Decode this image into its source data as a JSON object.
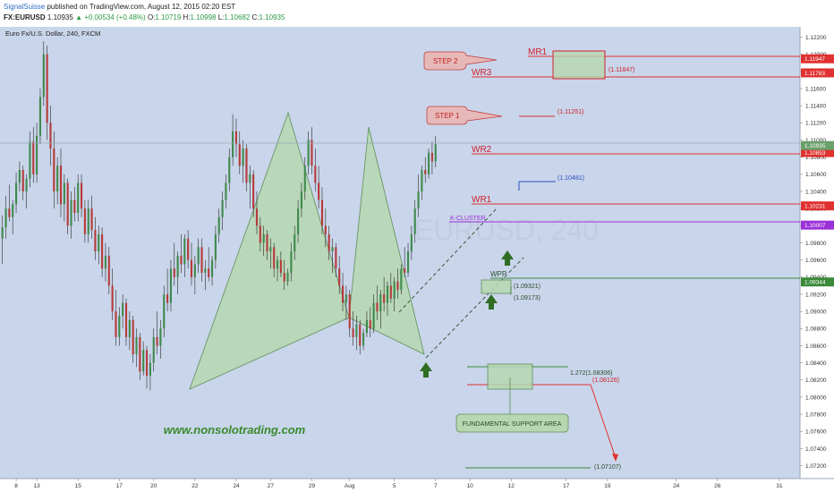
{
  "header": {
    "publisher": "SignalSuisse",
    "published_text": "published on TradingView.com, August 12, 2015 02:20 EST",
    "symbol": "FX:EURUSD",
    "last": "1.10935",
    "change": "▲ +0.00534 (+0.48%)",
    "ohlc_o_label": "O:",
    "ohlc_o": "1.10719",
    "ohlc_h_label": "H:",
    "ohlc_h": "1.10998",
    "ohlc_l_label": "L:",
    "ohlc_l": "1.10682",
    "ohlc_c_label": "C:",
    "ohlc_c": "1.10935"
  },
  "colors": {
    "background": "#c9d5ea",
    "bull": "#3e8a4c",
    "bear": "#b53a3a",
    "pattern_fill": "#b6d7b0",
    "level_red": "#e03131",
    "level_green": "#3a8a3a",
    "k_cluster": "#9b30d9",
    "wr_blue": "#2b4fc4",
    "price_current": "#6aa06a"
  },
  "chart_data": {
    "type": "candlestick",
    "title": "Euro Fx/U.S. Dollar, 240, FXCM",
    "watermark": "EURUSD, 240",
    "ylim": [
      1.0705,
      1.1232
    ],
    "y_ticks": [
      1.122,
      1.12,
      1.118,
      1.116,
      1.114,
      1.112,
      1.11,
      1.108,
      1.106,
      1.104,
      1.102,
      1.1,
      1.098,
      1.096,
      1.094,
      1.092,
      1.09,
      1.088,
      1.086,
      1.084,
      1.082,
      1.08,
      1.078,
      1.076,
      1.074,
      1.072
    ],
    "y_tick_labels": [
      "1.12200",
      "1.12000",
      "1.11800",
      "1.11600",
      "1.11400",
      "1.11200",
      "1.11000",
      "1.10800",
      "1.10600",
      "1.10400",
      "1.10200",
      "1.10000",
      "1.09800",
      "1.09600",
      "1.09400",
      "1.09200",
      "1.09000",
      "1.08800",
      "1.08600",
      "1.08400",
      "1.08200",
      "1.08000",
      "1.07800",
      "1.07600",
      "1.07400",
      "1.07200"
    ],
    "x_ticks": [
      {
        "label": "8",
        "i": 4
      },
      {
        "label": "13",
        "i": 10
      },
      {
        "label": "15",
        "i": 22
      },
      {
        "label": "17",
        "i": 34
      },
      {
        "label": "20",
        "i": 44
      },
      {
        "label": "22",
        "i": 56
      },
      {
        "label": "24",
        "i": 68
      },
      {
        "label": "27",
        "i": 78
      },
      {
        "label": "29",
        "i": 90
      },
      {
        "label": "Aug",
        "i": 101
      },
      {
        "label": "5",
        "i": 114
      },
      {
        "label": "7",
        "i": 126
      },
      {
        "label": "10",
        "i": 136
      },
      {
        "label": "12",
        "i": 148
      },
      {
        "label": "17",
        "i": 164
      },
      {
        "label": "19",
        "i": 176
      },
      {
        "label": "24",
        "i": 196
      },
      {
        "label": "26",
        "i": 208
      },
      {
        "label": "31",
        "i": 226
      }
    ],
    "x_index_range": [
      -0.7,
      232
    ],
    "ohlc": [
      [
        1.0985,
        1.1012,
        1.0955,
        1.0998
      ],
      [
        1.0998,
        1.1035,
        1.0985,
        1.102
      ],
      [
        1.102,
        1.1048,
        1.1005,
        1.101
      ],
      [
        1.101,
        1.103,
        1.099,
        1.1025
      ],
      [
        1.1025,
        1.1062,
        1.1015,
        1.105
      ],
      [
        1.105,
        1.1075,
        1.104,
        1.1065
      ],
      [
        1.1065,
        1.107,
        1.103,
        1.104
      ],
      [
        1.104,
        1.106,
        1.102,
        1.1055
      ],
      [
        1.1055,
        1.111,
        1.1045,
        1.1098
      ],
      [
        1.1098,
        1.1115,
        1.105,
        1.106
      ],
      [
        1.106,
        1.112,
        1.105,
        1.1105
      ],
      [
        1.1105,
        1.116,
        1.1095,
        1.115
      ],
      [
        1.115,
        1.1215,
        1.114,
        1.12
      ],
      [
        1.12,
        1.121,
        1.11,
        1.112
      ],
      [
        1.112,
        1.114,
        1.107,
        1.109
      ],
      [
        1.109,
        1.111,
        1.102,
        1.104
      ],
      [
        1.104,
        1.108,
        1.1025,
        1.107
      ],
      [
        1.107,
        1.109,
        1.101,
        1.1025
      ],
      [
        1.1025,
        1.106,
        1.1005,
        1.105
      ],
      [
        1.105,
        1.1055,
        1.099,
        1.1
      ],
      [
        1.1,
        1.104,
        1.0985,
        1.103
      ],
      [
        1.103,
        1.1045,
        1.1005,
        1.1015
      ],
      [
        1.1015,
        1.106,
        1.1005,
        1.105
      ],
      [
        1.105,
        1.106,
        1.101,
        1.102
      ],
      [
        1.102,
        1.103,
        1.098,
        1.099
      ],
      [
        1.099,
        1.103,
        1.098,
        1.102
      ],
      [
        1.102,
        1.1035,
        1.0985,
        1.0995
      ],
      [
        1.0995,
        1.101,
        1.096,
        1.097
      ],
      [
        1.097,
        1.1,
        1.0955,
        1.099
      ],
      [
        1.099,
        1.0998,
        1.094,
        1.095
      ],
      [
        1.095,
        1.098,
        1.0935,
        1.0965
      ],
      [
        1.0965,
        1.0975,
        1.092,
        1.093
      ],
      [
        1.093,
        1.095,
        1.089,
        1.09
      ],
      [
        1.09,
        1.0925,
        1.086,
        1.087
      ],
      [
        1.087,
        1.0905,
        1.086,
        1.0895
      ],
      [
        1.0895,
        1.092,
        1.088,
        1.091
      ],
      [
        1.091,
        1.0915,
        1.086,
        1.087
      ],
      [
        1.087,
        1.09,
        1.0855,
        1.089
      ],
      [
        1.089,
        1.0895,
        1.084,
        1.085
      ],
      [
        1.085,
        1.088,
        1.0835,
        1.087
      ],
      [
        1.087,
        1.0875,
        1.082,
        1.083
      ],
      [
        1.083,
        1.0865,
        1.0825,
        1.0855
      ],
      [
        1.0855,
        1.086,
        1.081,
        1.0825
      ],
      [
        1.0825,
        1.085,
        1.0808,
        1.084
      ],
      [
        1.084,
        1.088,
        1.083,
        1.087
      ],
      [
        1.087,
        1.09,
        1.085,
        1.086
      ],
      [
        1.086,
        1.089,
        1.0845,
        1.088
      ],
      [
        1.088,
        1.093,
        1.087,
        1.092
      ],
      [
        1.092,
        1.095,
        1.09,
        1.091
      ],
      [
        1.091,
        1.096,
        1.09,
        1.095
      ],
      [
        1.095,
        1.098,
        1.093,
        1.094
      ],
      [
        1.094,
        1.097,
        1.092,
        1.0965
      ],
      [
        1.0965,
        1.099,
        1.0945,
        1.0955
      ],
      [
        1.0955,
        1.099,
        1.094,
        1.0985
      ],
      [
        1.0985,
        1.0995,
        1.095,
        1.096
      ],
      [
        1.096,
        1.098,
        1.093,
        1.094
      ],
      [
        1.094,
        1.0965,
        1.092,
        1.0955
      ],
      [
        1.0955,
        1.0985,
        1.0945,
        1.0975
      ],
      [
        1.0975,
        1.0985,
        1.0935,
        1.0945
      ],
      [
        1.0945,
        1.096,
        1.0925,
        1.095
      ],
      [
        1.095,
        1.0975,
        1.0935,
        1.094
      ],
      [
        1.094,
        1.0965,
        1.093,
        1.096
      ],
      [
        1.096,
        1.1,
        1.095,
        1.099
      ],
      [
        1.099,
        1.102,
        1.098,
        1.101
      ],
      [
        1.101,
        1.104,
        1.0995,
        1.103
      ],
      [
        1.103,
        1.106,
        1.102,
        1.105
      ],
      [
        1.105,
        1.109,
        1.104,
        1.108
      ],
      [
        1.108,
        1.113,
        1.107,
        1.111
      ],
      [
        1.111,
        1.1125,
        1.108,
        1.1095
      ],
      [
        1.1095,
        1.111,
        1.106,
        1.107
      ],
      [
        1.107,
        1.11,
        1.105,
        1.109
      ],
      [
        1.109,
        1.1095,
        1.104,
        1.105
      ],
      [
        1.105,
        1.107,
        1.102,
        1.106
      ],
      [
        1.106,
        1.1065,
        1.101,
        1.102
      ],
      [
        1.102,
        1.104,
        1.099,
        1.1
      ],
      [
        1.1,
        1.101,
        1.097,
        1.098
      ],
      [
        1.098,
        1.1,
        1.0965,
        1.099
      ],
      [
        1.099,
        1.0995,
        1.096,
        1.097
      ],
      [
        1.097,
        1.0985,
        1.095,
        1.0975
      ],
      [
        1.0975,
        1.098,
        1.094,
        1.095
      ],
      [
        1.095,
        1.0965,
        1.0935,
        1.096
      ],
      [
        1.096,
        1.097,
        1.094,
        1.0945
      ],
      [
        1.0945,
        1.096,
        1.0925,
        1.0935
      ],
      [
        1.0935,
        1.095,
        1.093,
        1.0945
      ],
      [
        1.0945,
        1.098,
        1.0935,
        1.097
      ],
      [
        1.097,
        1.1,
        1.096,
        1.099
      ],
      [
        1.099,
        1.103,
        1.098,
        1.102
      ],
      [
        1.102,
        1.105,
        1.101,
        1.104
      ],
      [
        1.104,
        1.108,
        1.103,
        1.107
      ],
      [
        1.107,
        1.111,
        1.106,
        1.11
      ],
      [
        1.11,
        1.1115,
        1.106,
        1.107
      ],
      [
        1.107,
        1.109,
        1.104,
        1.105
      ],
      [
        1.105,
        1.107,
        1.102,
        1.103
      ],
      [
        1.103,
        1.1045,
        1.099,
        1.1
      ],
      [
        1.1,
        1.102,
        1.0975,
        1.099
      ],
      [
        1.099,
        1.1,
        1.096,
        1.097
      ],
      [
        1.097,
        1.0985,
        1.0945,
        1.0975
      ],
      [
        1.0975,
        1.098,
        1.094,
        1.095
      ],
      [
        1.095,
        1.0965,
        1.092,
        1.093
      ],
      [
        1.093,
        1.0945,
        1.09,
        1.091
      ],
      [
        1.091,
        1.093,
        1.089,
        1.092
      ],
      [
        1.092,
        1.0925,
        1.087,
        1.088
      ],
      [
        1.088,
        1.09,
        1.086,
        1.087
      ],
      [
        1.087,
        1.0895,
        1.0855,
        1.0885
      ],
      [
        1.0885,
        1.089,
        1.085,
        1.086
      ],
      [
        1.086,
        1.088,
        1.0855,
        1.0875
      ],
      [
        1.0875,
        1.09,
        1.087,
        1.089
      ],
      [
        1.089,
        1.0905,
        1.087,
        1.088
      ],
      [
        1.088,
        1.092,
        1.0875,
        1.091
      ],
      [
        1.091,
        1.093,
        1.089,
        1.09
      ],
      [
        1.09,
        1.0925,
        1.088,
        1.092
      ],
      [
        1.092,
        1.094,
        1.09,
        1.091
      ],
      [
        1.091,
        1.0935,
        1.0895,
        1.093
      ],
      [
        1.093,
        1.0945,
        1.091,
        1.0915
      ],
      [
        1.0915,
        1.094,
        1.09,
        1.0935
      ],
      [
        1.0935,
        1.095,
        1.0915,
        1.0925
      ],
      [
        1.0925,
        1.0955,
        1.092,
        1.095
      ],
      [
        1.095,
        1.0975,
        1.094,
        1.0945
      ],
      [
        1.0945,
        1.098,
        1.094,
        1.097
      ],
      [
        1.097,
        1.1,
        1.096,
        1.099
      ],
      [
        1.099,
        1.103,
        1.098,
        1.102
      ],
      [
        1.102,
        1.106,
        1.101,
        1.104
      ],
      [
        1.104,
        1.107,
        1.103,
        1.1065
      ],
      [
        1.1065,
        1.108,
        1.105,
        1.106
      ],
      [
        1.106,
        1.109,
        1.1055,
        1.1085
      ],
      [
        1.1085,
        1.1098,
        1.106,
        1.1075
      ],
      [
        1.1075,
        1.1105,
        1.1068,
        1.1095
      ]
    ],
    "levels": [
      {
        "name": "MR1",
        "value": 1.11947,
        "color": "#e03131",
        "tag": "1.11947"
      },
      {
        "name": "WR3",
        "value": 1.11783,
        "color": "#e03131",
        "tag": "1.11783"
      },
      {
        "name": "WR2",
        "value": 1.10853,
        "color": "#e03131",
        "tag": "1.10853"
      },
      {
        "name": "WR1",
        "value": 1.10231,
        "color": "#e03131",
        "tag": "1.10231"
      },
      {
        "name": "K-CLUSTER",
        "value": 1.10007,
        "color": "#9b30d9",
        "tag": "1.10007"
      },
      {
        "name": "WPP",
        "value": 1.09344,
        "color": "#3a8a3a",
        "tag": "1.09344"
      }
    ],
    "current_price": {
      "value": 1.10935,
      "tag": "1.10935"
    },
    "annotations": {
      "step1": "STEP 1",
      "step2": "STEP 2",
      "step1_target": "(1.11251)",
      "step2_target": "(1.11847)",
      "wr_target": "(1.10481)",
      "wpp_upper": "(1.09321)",
      "wpp_lower": "(1.09173)",
      "support_upper": "1.272(1.08306)",
      "support_lower": "(1.08126)",
      "final_target": "(1.07107)",
      "support_label": "FUNDAMENTAL SUPPORT AREA",
      "website": "www.nonsolotrading.com"
    }
  }
}
